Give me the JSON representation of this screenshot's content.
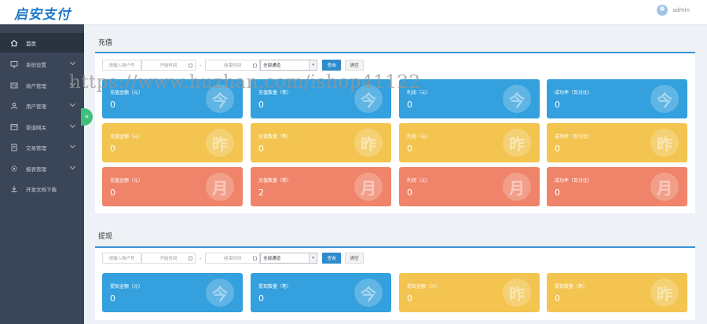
{
  "app": {
    "logo_text": "启安支付",
    "username": "admin"
  },
  "sidebar": {
    "items": [
      {
        "label": "首页",
        "icon": "home-icon",
        "expandable": false
      },
      {
        "label": "系统设置",
        "icon": "monitor-icon",
        "expandable": true
      },
      {
        "label": "商户管理",
        "icon": "card-icon",
        "expandable": true
      },
      {
        "label": "用户管理",
        "icon": "user-icon",
        "expandable": true
      },
      {
        "label": "渠道网关",
        "icon": "gateway-icon",
        "expandable": true
      },
      {
        "label": "交易管理",
        "icon": "doc-icon",
        "expandable": true
      },
      {
        "label": "报表管理",
        "icon": "gear-icon",
        "expandable": true
      },
      {
        "label": "开发文档下载",
        "icon": "download-icon",
        "expandable": false
      }
    ]
  },
  "watermark": "https://www.huzhan.com/ishop41122",
  "recharge": {
    "title": "充值",
    "filters": {
      "merchant_placeholder": "请输入商户号",
      "start_placeholder": "开始时间",
      "end_placeholder": "结束时间",
      "dash": "-",
      "select_value": "全部通道",
      "query_label": "查询",
      "clear_label": "清空"
    },
    "rows": [
      {
        "mark": "今",
        "color": "blue",
        "cards": [
          {
            "label": "充值金额（元）",
            "value": "0"
          },
          {
            "label": "充值数量（笔）",
            "value": "0"
          },
          {
            "label": "利润（元）",
            "value": "0"
          },
          {
            "label": "成功率（百分比）",
            "value": "0"
          }
        ]
      },
      {
        "mark": "昨",
        "color": "yellow",
        "cards": [
          {
            "label": "充值金额（元）",
            "value": "0"
          },
          {
            "label": "充值数量（笔）",
            "value": "0"
          },
          {
            "label": "利润（元）",
            "value": "0"
          },
          {
            "label": "成功率（百分比）",
            "value": "0"
          }
        ]
      },
      {
        "mark": "月",
        "color": "red",
        "cards": [
          {
            "label": "充值金额（元）",
            "value": "0"
          },
          {
            "label": "充值数量（笔）",
            "value": "2"
          },
          {
            "label": "利润（元）",
            "value": "0"
          },
          {
            "label": "成功率（百分比）",
            "value": "0"
          }
        ]
      }
    ]
  },
  "withdraw": {
    "title": "提现",
    "filters": {
      "merchant_placeholder": "请输入商户号",
      "start_placeholder": "开始时间",
      "end_placeholder": "结束时间",
      "dash": "-",
      "select_value": "全部通道",
      "query_label": "查询",
      "clear_label": "清空"
    },
    "cards": [
      {
        "label": "提现金额（元）",
        "value": "0",
        "mark": "今",
        "color": "blue"
      },
      {
        "label": "提现数量（笔）",
        "value": "0",
        "mark": "今",
        "color": "blue"
      },
      {
        "label": "提现金额（元）",
        "value": "0",
        "mark": "昨",
        "color": "yellow"
      },
      {
        "label": "提现数量（笔）",
        "value": "0",
        "mark": "昨",
        "color": "yellow"
      }
    ]
  }
}
